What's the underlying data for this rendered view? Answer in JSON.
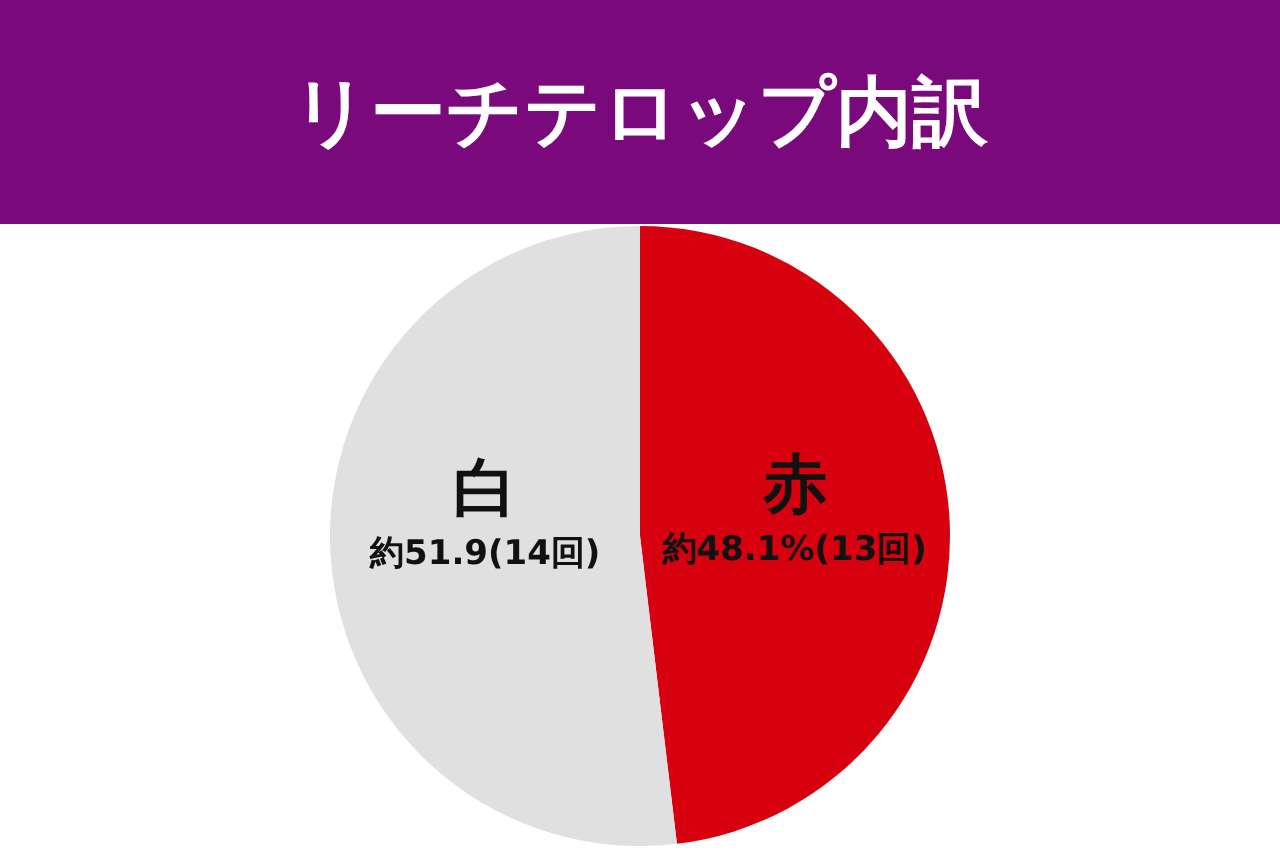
{
  "chart_data": {
    "type": "pie",
    "title": "リーチテロップ内訳",
    "categories": [
      "赤",
      "白"
    ],
    "values": [
      48.1,
      51.9
    ],
    "colors": [
      "#d7000f",
      "#e0e0e0"
    ],
    "value_labels": [
      "約48.1%(13回)",
      "約51.9(14回)"
    ]
  }
}
